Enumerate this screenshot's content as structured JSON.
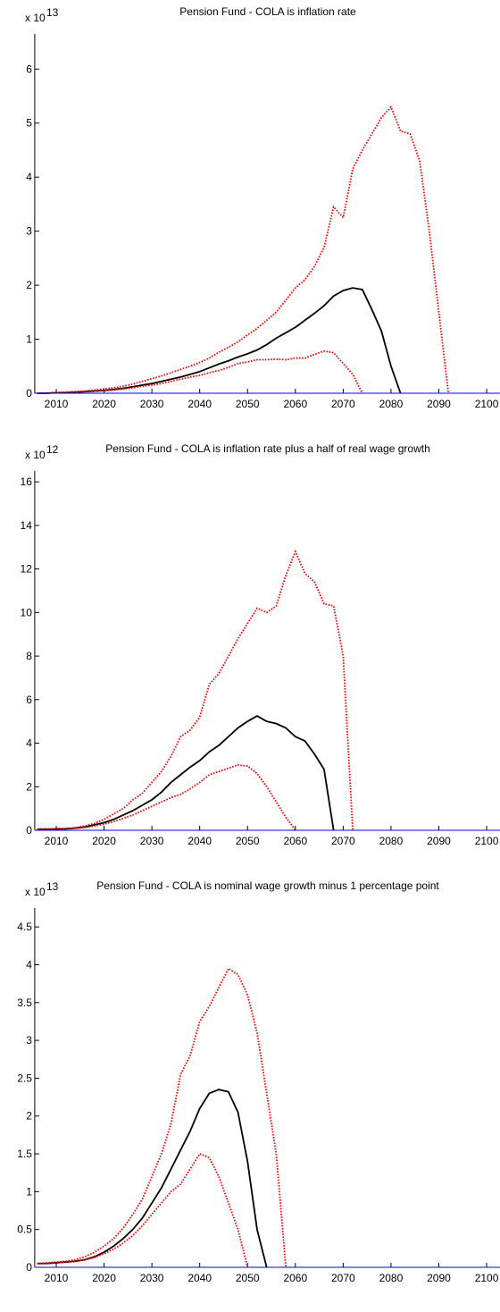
{
  "chart_data": [
    {
      "type": "line",
      "title": "Pension Fund - COLA is inflation rate",
      "multiplier": "x 10",
      "multiplier_exponent": "13",
      "x": [
        2006,
        2008,
        2010,
        2012,
        2014,
        2016,
        2018,
        2020,
        2022,
        2024,
        2026,
        2028,
        2030,
        2032,
        2034,
        2036,
        2038,
        2040,
        2042,
        2044,
        2046,
        2048,
        2050,
        2052,
        2054,
        2056,
        2058,
        2060,
        2062,
        2064,
        2066,
        2068,
        2070,
        2072,
        2074,
        2076,
        2078,
        2080,
        2082,
        2084,
        2086,
        2088,
        2090,
        2092,
        2094,
        2096,
        2098,
        2100,
        2102,
        2104
      ],
      "series": [
        {
          "color": "#ff0000",
          "linestyle": "dotted",
          "values": [
            0,
            0,
            0.01,
            0.02,
            0.03,
            0.04,
            0.06,
            0.08,
            0.1,
            0.13,
            0.17,
            0.22,
            0.27,
            0.32,
            0.38,
            0.44,
            0.5,
            0.57,
            0.65,
            0.76,
            0.85,
            0.95,
            1.08,
            1.2,
            1.35,
            1.5,
            1.72,
            1.95,
            2.1,
            2.35,
            2.7,
            3.45,
            3.25,
            4.15,
            4.5,
            4.8,
            5.1,
            5.3,
            4.85,
            4.8,
            4.3,
            3.0,
            1.5,
            0,
            null,
            null,
            null,
            null,
            null,
            null
          ]
        },
        {
          "color": "#000000",
          "linestyle": "solid",
          "values": [
            0,
            0,
            0.01,
            0.01,
            0.02,
            0.03,
            0.04,
            0.05,
            0.07,
            0.09,
            0.12,
            0.15,
            0.18,
            0.22,
            0.26,
            0.3,
            0.35,
            0.4,
            0.47,
            0.54,
            0.6,
            0.67,
            0.73,
            0.8,
            0.9,
            1.02,
            1.12,
            1.22,
            1.35,
            1.48,
            1.62,
            1.8,
            1.9,
            1.95,
            1.92,
            1.55,
            1.15,
            0.5,
            0,
            null,
            null,
            null,
            null,
            null,
            null,
            null,
            null,
            null,
            null,
            null
          ]
        },
        {
          "color": "#ff0000",
          "linestyle": "dotted",
          "values": [
            0,
            0,
            0.01,
            0.01,
            0.02,
            0.03,
            0.04,
            0.05,
            0.06,
            0.08,
            0.1,
            0.13,
            0.15,
            0.18,
            0.22,
            0.26,
            0.3,
            0.33,
            0.38,
            0.42,
            0.48,
            0.55,
            0.58,
            0.62,
            0.62,
            0.63,
            0.62,
            0.65,
            0.65,
            0.72,
            0.78,
            0.75,
            0.55,
            0.35,
            0,
            null,
            null,
            null,
            null,
            null,
            null,
            null,
            null,
            null,
            null,
            null,
            null,
            null,
            null,
            null
          ]
        }
      ],
      "xlim": [
        2005.5,
        2105.5
      ],
      "xticks": [
        2010,
        2020,
        2030,
        2040,
        2050,
        2060,
        2070,
        2080,
        2090,
        2100
      ],
      "ylim": [
        0,
        6.65
      ],
      "yticks": [
        0,
        1,
        2,
        3,
        4,
        5,
        6
      ],
      "baseline_color": "#0000ff",
      "grid": false
    },
    {
      "type": "line",
      "title": "Pension Fund - COLA is inflation rate plus a half of real wage growth",
      "multiplier": "x 10",
      "multiplier_exponent": "12",
      "x": [
        2006,
        2008,
        2010,
        2012,
        2014,
        2016,
        2018,
        2020,
        2022,
        2024,
        2026,
        2028,
        2030,
        2032,
        2034,
        2036,
        2038,
        2040,
        2042,
        2044,
        2046,
        2048,
        2050,
        2052,
        2054,
        2056,
        2058,
        2060,
        2062,
        2064,
        2066,
        2068,
        2070,
        2072,
        2074,
        2076,
        2078,
        2080,
        2082,
        2084,
        2086,
        2088,
        2090,
        2092,
        2094,
        2096,
        2098,
        2100,
        2102,
        2104
      ],
      "series": [
        {
          "color": "#ff0000",
          "linestyle": "dotted",
          "values": [
            0.05,
            0.06,
            0.07,
            0.08,
            0.12,
            0.2,
            0.32,
            0.5,
            0.75,
            1.0,
            1.4,
            1.7,
            2.2,
            2.7,
            3.4,
            4.3,
            4.6,
            5.2,
            6.7,
            7.2,
            8.0,
            8.8,
            9.5,
            10.2,
            10.0,
            10.3,
            11.7,
            12.8,
            11.8,
            11.4,
            10.4,
            10.3,
            8.0,
            0,
            null,
            null,
            null,
            null,
            null,
            null,
            null,
            null,
            null,
            null,
            null,
            null,
            null,
            null,
            null,
            null
          ]
        },
        {
          "color": "#000000",
          "linestyle": "solid",
          "values": [
            0.05,
            0.05,
            0.06,
            0.07,
            0.1,
            0.15,
            0.25,
            0.35,
            0.5,
            0.7,
            0.9,
            1.15,
            1.4,
            1.75,
            2.2,
            2.55,
            2.9,
            3.2,
            3.6,
            3.9,
            4.3,
            4.7,
            5.0,
            5.25,
            5.0,
            4.9,
            4.7,
            4.3,
            4.1,
            3.5,
            2.8,
            0,
            null,
            null,
            null,
            null,
            null,
            null,
            null,
            null,
            null,
            null,
            null,
            null,
            null,
            null,
            null,
            null,
            null,
            null
          ]
        },
        {
          "color": "#ff0000",
          "linestyle": "dotted",
          "values": [
            0.05,
            0.05,
            0.06,
            0.07,
            0.1,
            0.13,
            0.2,
            0.28,
            0.4,
            0.55,
            0.7,
            0.9,
            1.1,
            1.3,
            1.5,
            1.65,
            1.9,
            2.2,
            2.55,
            2.7,
            2.85,
            3.0,
            2.95,
            2.6,
            2.0,
            1.3,
            0.6,
            0,
            null,
            null,
            null,
            null,
            null,
            null,
            null,
            null,
            null,
            null,
            null,
            null,
            null,
            null,
            null,
            null,
            null,
            null,
            null,
            null,
            null,
            null
          ]
        }
      ],
      "xlim": [
        2005.5,
        2105.5
      ],
      "xticks": [
        2010,
        2020,
        2030,
        2040,
        2050,
        2060,
        2070,
        2080,
        2090,
        2100
      ],
      "ylim": [
        0,
        16.5
      ],
      "yticks": [
        0,
        2,
        4,
        6,
        8,
        10,
        12,
        14,
        16
      ],
      "baseline_color": "#0000ff",
      "grid": false
    },
    {
      "type": "line",
      "title": "Pension Fund - COLA is nominal wage growth minus 1 percentage point",
      "multiplier": "x 10",
      "multiplier_exponent": "13",
      "x": [
        2006,
        2008,
        2010,
        2012,
        2014,
        2016,
        2018,
        2020,
        2022,
        2024,
        2026,
        2028,
        2030,
        2032,
        2034,
        2036,
        2038,
        2040,
        2042,
        2044,
        2046,
        2048,
        2050,
        2052,
        2054,
        2056,
        2058,
        2060,
        2062,
        2064,
        2066,
        2068,
        2070,
        2072,
        2074,
        2076,
        2078,
        2080,
        2082,
        2084,
        2086,
        2088,
        2090,
        2092,
        2094,
        2096,
        2098,
        2100,
        2102,
        2104
      ],
      "series": [
        {
          "color": "#ff0000",
          "linestyle": "dotted",
          "values": [
            0.05,
            0.06,
            0.07,
            0.08,
            0.1,
            0.14,
            0.2,
            0.28,
            0.38,
            0.52,
            0.7,
            0.9,
            1.2,
            1.5,
            1.9,
            2.55,
            2.8,
            3.25,
            3.45,
            3.7,
            3.95,
            3.87,
            3.6,
            3.1,
            2.3,
            1.5,
            0,
            null,
            null,
            null,
            null,
            null,
            null,
            null,
            null,
            null,
            null,
            null,
            null,
            null,
            null,
            null,
            null,
            null,
            null,
            null,
            null,
            null,
            null,
            null
          ]
        },
        {
          "color": "#000000",
          "linestyle": "solid",
          "values": [
            0.05,
            0.05,
            0.06,
            0.07,
            0.08,
            0.1,
            0.14,
            0.2,
            0.28,
            0.38,
            0.5,
            0.65,
            0.85,
            1.05,
            1.3,
            1.55,
            1.8,
            2.1,
            2.3,
            2.35,
            2.32,
            2.05,
            1.4,
            0.5,
            0,
            null,
            null,
            null,
            null,
            null,
            null,
            null,
            null,
            null,
            null,
            null,
            null,
            null,
            null,
            null,
            null,
            null,
            null,
            null,
            null,
            null,
            null,
            null,
            null,
            null
          ]
        },
        {
          "color": "#ff0000",
          "linestyle": "dotted",
          "values": [
            0.05,
            0.05,
            0.06,
            0.07,
            0.08,
            0.1,
            0.13,
            0.18,
            0.24,
            0.32,
            0.42,
            0.55,
            0.7,
            0.85,
            1.0,
            1.1,
            1.3,
            1.5,
            1.45,
            1.2,
            0.85,
            0.5,
            0,
            null,
            null,
            null,
            null,
            null,
            null,
            null,
            null,
            null,
            null,
            null,
            null,
            null,
            null,
            null,
            null,
            null,
            null,
            null,
            null,
            null,
            null,
            null,
            null,
            null,
            null,
            null
          ]
        }
      ],
      "xlim": [
        2005.5,
        2105.5
      ],
      "xticks": [
        2010,
        2020,
        2030,
        2040,
        2050,
        2060,
        2070,
        2080,
        2090,
        2100
      ],
      "ylim": [
        0,
        4.75
      ],
      "yticks": [
        0,
        0.5,
        1,
        1.5,
        2,
        2.5,
        3,
        3.5,
        4,
        4.5
      ],
      "baseline_color": "#0000ff",
      "grid": false
    }
  ]
}
